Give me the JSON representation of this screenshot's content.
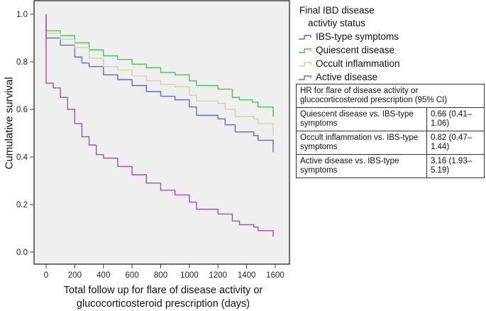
{
  "chart_data": {
    "type": "line",
    "subtype": "kaplan-meier step",
    "xlabel": "Total follow up for flare of disease activity or glucocorticosteroid prescription (days)",
    "ylabel": "Cumulative survival",
    "xlim": [
      0,
      1600
    ],
    "ylim": [
      0,
      1.0
    ],
    "xticks": [
      "0",
      "200",
      "400",
      "600",
      "800",
      "1000",
      "1200",
      "1400",
      "1600"
    ],
    "yticks": [
      "0.0",
      "0.2",
      "0.4",
      "0.6",
      "0.8",
      "1.0"
    ],
    "grid": false,
    "background": "#efefef",
    "legend": {
      "title": "Final IBD disease activtiy status",
      "placement": "right"
    },
    "series": [
      {
        "name": "IBS-type symptoms",
        "color": "#5b6fc4",
        "points": [
          [
            0,
            1.0
          ],
          [
            0,
            0.9
          ],
          [
            100,
            0.87
          ],
          [
            200,
            0.82
          ],
          [
            250,
            0.795
          ],
          [
            300,
            0.78
          ],
          [
            400,
            0.745
          ],
          [
            500,
            0.725
          ],
          [
            600,
            0.7
          ],
          [
            700,
            0.675
          ],
          [
            800,
            0.655
          ],
          [
            900,
            0.64
          ],
          [
            1000,
            0.61
          ],
          [
            1050,
            0.575
          ],
          [
            1200,
            0.56
          ],
          [
            1250,
            0.535
          ],
          [
            1320,
            0.505
          ],
          [
            1450,
            0.49
          ],
          [
            1480,
            0.47
          ],
          [
            1585,
            0.47
          ],
          [
            1585,
            0.42
          ]
        ]
      },
      {
        "name": "Quiescent disease",
        "color": "#4cc257",
        "points": [
          [
            0,
            1.0
          ],
          [
            0,
            0.93
          ],
          [
            100,
            0.91
          ],
          [
            200,
            0.88
          ],
          [
            300,
            0.85
          ],
          [
            400,
            0.825
          ],
          [
            500,
            0.81
          ],
          [
            600,
            0.79
          ],
          [
            700,
            0.775
          ],
          [
            800,
            0.755
          ],
          [
            900,
            0.745
          ],
          [
            1000,
            0.72
          ],
          [
            1050,
            0.7
          ],
          [
            1200,
            0.685
          ],
          [
            1300,
            0.65
          ],
          [
            1350,
            0.64
          ],
          [
            1440,
            0.63
          ],
          [
            1480,
            0.61
          ],
          [
            1585,
            0.61
          ],
          [
            1585,
            0.57
          ]
        ]
      },
      {
        "name": "Occult inflammation",
        "color": "#d8d3a3",
        "points": [
          [
            0,
            1.0
          ],
          [
            0,
            0.92
          ],
          [
            100,
            0.895
          ],
          [
            200,
            0.86
          ],
          [
            300,
            0.815
          ],
          [
            400,
            0.78
          ],
          [
            500,
            0.765
          ],
          [
            600,
            0.74
          ],
          [
            700,
            0.72
          ],
          [
            800,
            0.705
          ],
          [
            900,
            0.695
          ],
          [
            1000,
            0.66
          ],
          [
            1050,
            0.635
          ],
          [
            1200,
            0.625
          ],
          [
            1250,
            0.6
          ],
          [
            1320,
            0.57
          ],
          [
            1450,
            0.56
          ],
          [
            1480,
            0.54
          ],
          [
            1585,
            0.54
          ],
          [
            1585,
            0.49
          ]
        ]
      },
      {
        "name": "Active disease",
        "color": "#a052a8",
        "points": [
          [
            0,
            1.0
          ],
          [
            0,
            0.71
          ],
          [
            50,
            0.69
          ],
          [
            100,
            0.65
          ],
          [
            150,
            0.6
          ],
          [
            200,
            0.54
          ],
          [
            250,
            0.485
          ],
          [
            300,
            0.45
          ],
          [
            350,
            0.41
          ],
          [
            400,
            0.395
          ],
          [
            500,
            0.36
          ],
          [
            600,
            0.325
          ],
          [
            700,
            0.29
          ],
          [
            800,
            0.26
          ],
          [
            900,
            0.24
          ],
          [
            1000,
            0.21
          ],
          [
            1050,
            0.18
          ],
          [
            1200,
            0.16
          ],
          [
            1300,
            0.13
          ],
          [
            1350,
            0.115
          ],
          [
            1450,
            0.105
          ],
          [
            1480,
            0.09
          ],
          [
            1585,
            0.09
          ],
          [
            1585,
            0.065
          ]
        ]
      }
    ]
  },
  "hr_table": {
    "header": "HR for flare of disease activity or glucocorticosteroid prescription (95% CI)",
    "rows": [
      {
        "comparison": "Quiescent disease vs. IBS-type symptoms",
        "hr": "0.66 (0.41–1.06)"
      },
      {
        "comparison": "Occult inflammation vs. IBS-type symptoms",
        "hr": "0.82 (0.47–1.44)"
      },
      {
        "comparison": "Active disease vs. IBS-type symptoms",
        "hr": "3.16 (1.93–5.19)"
      }
    ]
  },
  "legend_title_lines": [
    "Final IBD disease",
    "activtiy status"
  ]
}
